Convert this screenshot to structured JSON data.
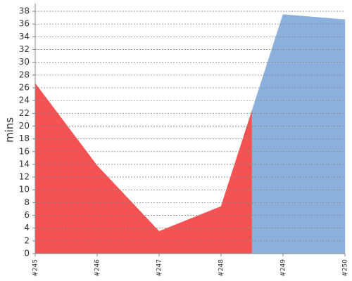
{
  "chart_data": {
    "type": "area",
    "y_label": "mins",
    "categories": [
      "#245",
      "#246",
      "#247",
      "#248",
      "#249",
      "#250"
    ],
    "values": [
      26.7,
      13.8,
      3.5,
      7.4,
      37.5,
      36.7
    ],
    "point_colors": [
      "#f55353",
      "#f55353",
      "#f55353",
      "#f55353",
      "#8cb0dc",
      "#8cb0dc"
    ],
    "ylim": [
      0,
      39
    ],
    "yticks": [
      0,
      2,
      4,
      6,
      8,
      10,
      12,
      14,
      16,
      18,
      20,
      22,
      24,
      26,
      28,
      30,
      32,
      34,
      36,
      38
    ],
    "grid": true
  }
}
